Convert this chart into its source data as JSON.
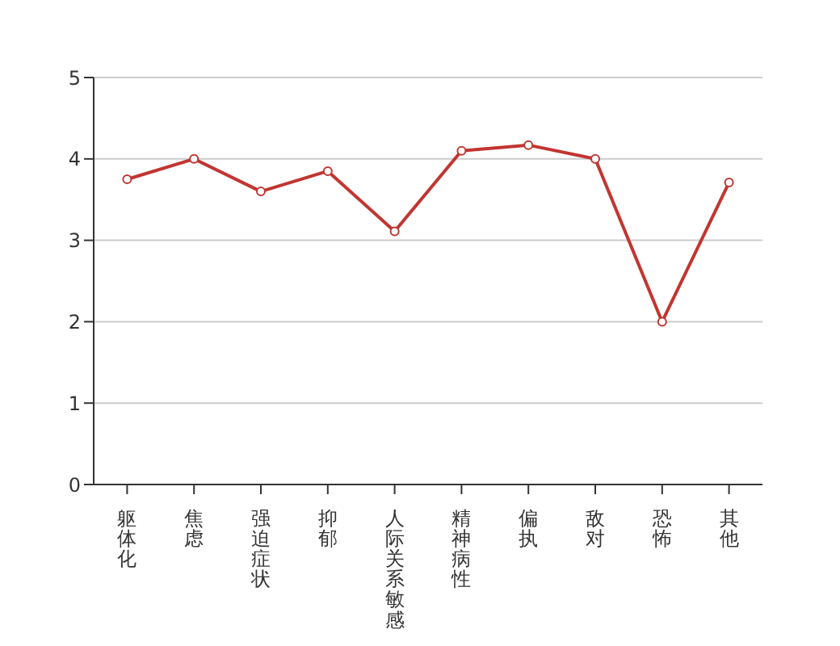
{
  "chart_data": {
    "type": "line",
    "categories": [
      "躯体化",
      "焦虑",
      "强迫症状",
      "抑郁",
      "人际关系敏感",
      "精神病性",
      "偏执",
      "敌对",
      "恐怖",
      "其他"
    ],
    "series": [
      {
        "color": "#c23531",
        "values": [
          3.75,
          4.0,
          3.6,
          3.85,
          3.11,
          4.1,
          4.17,
          4.0,
          2.0,
          3.71
        ]
      }
    ],
    "ylim": [
      0,
      5
    ],
    "yticks": [
      0,
      1,
      2,
      3,
      4,
      5
    ],
    "grid": "y",
    "marker": "circle"
  }
}
